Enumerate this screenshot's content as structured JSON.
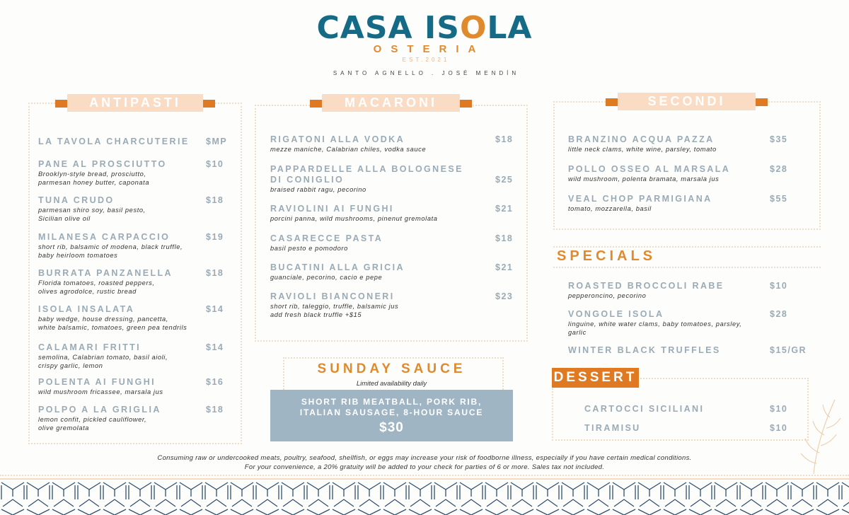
{
  "brand": {
    "name_part1": "CASA IS",
    "name_o": "O",
    "name_part2": "LA",
    "subtitle": "OSTERIA",
    "established": "EST.2021",
    "owners": "SANTO AGNELLO . JOSÉ MENDÍN",
    "colors": {
      "teal": "#156b86",
      "orange": "#e08a2e",
      "item_gray": "#9aabb6",
      "sauce_box": "#9fb5c3",
      "peach": "#fadcc4"
    }
  },
  "antipasti": {
    "title": "ANTIPASTI",
    "items": [
      {
        "name": "LA TAVOLA CHARCUTERIE",
        "price": "$MP",
        "desc": []
      },
      {
        "name": "PANE AL PROSCIUTTO",
        "price": "$10",
        "desc": [
          "Brooklyn-style bread, prosciutto,",
          "parmesan honey butter, caponata"
        ]
      },
      {
        "name": "TUNA CRUDO",
        "price": "$18",
        "desc": [
          "parmesan shiro soy, basil pesto,",
          "Sicilian olive oil"
        ]
      },
      {
        "name": "MILANESA CARPACCIO",
        "price": "$19",
        "desc": [
          "short rib, balsamic of modena, black truffle,",
          "baby heirloom tomatoes"
        ]
      },
      {
        "name": "BURRATA PANZANELLA",
        "price": "$18",
        "desc": [
          "Florida tomatoes, roasted peppers,",
          "olives agrodolce, rustic bread"
        ]
      },
      {
        "name": "ISOLA INSALATA",
        "price": "$14",
        "desc": [
          "baby wedge, house dressing, pancetta,",
          "white balsamic, tomatoes, green pea tendrils"
        ]
      },
      {
        "name": "CALAMARI FRITTI",
        "price": "$14",
        "desc": [
          "semolina, Calabrian tomato, basil aioli,",
          "crispy garlic, lemon"
        ]
      },
      {
        "name": "POLENTA AI FUNGHI",
        "price": "$16",
        "desc": [
          "wild mushroom fricassee, marsala jus"
        ]
      },
      {
        "name": "POLPO A LA GRIGLIA",
        "price": "$18",
        "desc": [
          "lemon confit, pickled cauliflower,",
          "olive gremolata"
        ]
      }
    ]
  },
  "macaroni": {
    "title": "MACARONI",
    "items": [
      {
        "name": "RIGATONI ALLA VODKA",
        "price": "$18",
        "desc": [
          "mezze maniche, Calabrian chiles, vodka sauce"
        ]
      },
      {
        "name": "PAPPARDELLE ALLA BOLOGNESE\nDI CONIGLIO",
        "price": "$25",
        "desc": [
          "braised rabbit ragu, pecorino"
        ]
      },
      {
        "name": "RAVIOLINI AI FUNGHI",
        "price": "$21",
        "desc": [
          "porcini panna, wild mushrooms, pinenut gremolata"
        ]
      },
      {
        "name": "CASARECCE PASTA",
        "price": "$18",
        "desc": [
          "basil pesto e pomodoro"
        ]
      },
      {
        "name": "BUCATINI ALLA GRICIA",
        "price": "$21",
        "desc": [
          "guanciale, pecorino, cacio e pepe"
        ]
      },
      {
        "name": "RAVIOLI BIANCONERI",
        "price": "$23",
        "desc": [
          "short rib, taleggio, truffle, balsamic jus",
          "add fresh black truffle  +$15"
        ]
      }
    ]
  },
  "secondi": {
    "title": "SECONDI",
    "items": [
      {
        "name": "BRANZINO ACQUA PAZZA",
        "price": "$35",
        "desc": [
          "little neck clams, white wine, parsley, tomato"
        ]
      },
      {
        "name": "POLLO OSSEO AL MARSALA",
        "price": "$28",
        "desc": [
          "wild mushroom, polenta bramata, marsala jus"
        ]
      },
      {
        "name": "VEAL CHOP PARMIGIANA",
        "price": "$55",
        "desc": [
          "tomato, mozzarella, basil"
        ]
      }
    ]
  },
  "specials": {
    "title": "SPECIALS",
    "items": [
      {
        "name": "ROASTED BROCCOLI RABE",
        "price": "$10",
        "desc": [
          "pepperoncino, pecorino"
        ]
      },
      {
        "name": "VONGOLE ISOLA",
        "price": "$28",
        "desc": [
          "linguine, white water clams, baby tomatoes, parsley,",
          "garlic"
        ]
      },
      {
        "name": "WINTER BLACK TRUFFLES",
        "price": "$15/GR",
        "desc": []
      }
    ]
  },
  "dessert": {
    "title": "DESSERT",
    "items": [
      {
        "name": "CARTOCCI SICILIANI",
        "price": "$10",
        "desc": []
      },
      {
        "name": "TIRAMISU",
        "price": "$10",
        "desc": []
      }
    ]
  },
  "sunday_sauce": {
    "title": "SUNDAY SAUCE",
    "subtitle": "Limited availability daily",
    "line1": "SHORT RIB MEATBALL, PORK RIB,",
    "line2": "ITALIAN SAUSAGE, 8-HOUR SAUCE",
    "price": "$30"
  },
  "footer": {
    "line1": "Consuming raw or undercooked meats, poultry, seafood, shellfish, or eggs may increase your risk of foodborne illness, especially if you have certain medical conditions.",
    "line2": "For your convenience, a 20% gratuity will be added to your check for parties of 6 or more.  Sales tax not included."
  }
}
